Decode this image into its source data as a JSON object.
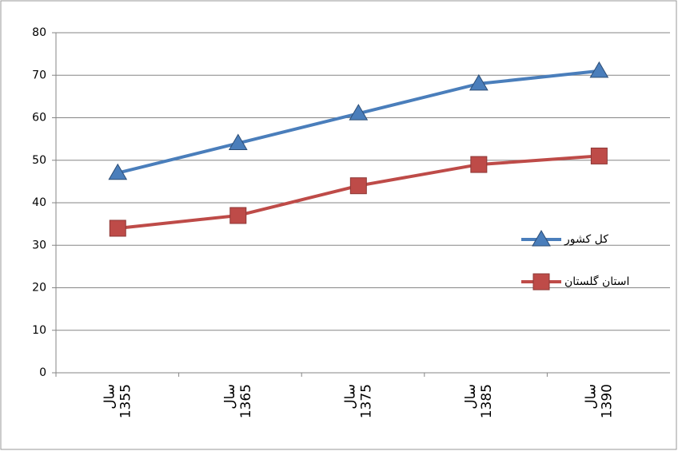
{
  "chart_data": {
    "type": "line",
    "categories": [
      "سال 1355",
      "سال 1365",
      "سال 1375",
      "سال 1385",
      "سال 1390"
    ],
    "series": [
      {
        "name": "کل کشور",
        "color": "#4a7ebb",
        "marker": "triangle",
        "values": [
          47,
          54,
          61,
          68,
          71
        ]
      },
      {
        "name": "استان گلستان",
        "color": "#be4b48",
        "marker": "square",
        "values": [
          34,
          37,
          44,
          49,
          51
        ]
      }
    ],
    "ylim": [
      0,
      80
    ],
    "yticks": [
      0,
      10,
      20,
      30,
      40,
      50,
      60,
      70,
      80
    ],
    "grid": true,
    "legend": "right"
  }
}
